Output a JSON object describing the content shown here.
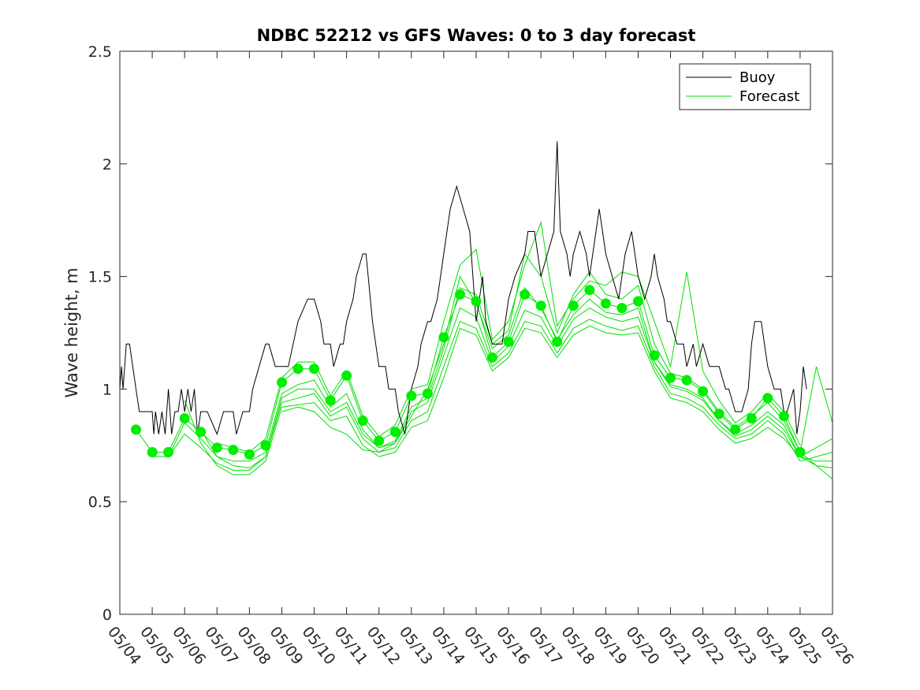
{
  "chart_data": {
    "type": "line",
    "title": "NDBC 52212 vs GFS Waves: 0 to 3 day forecast",
    "xlabel": "",
    "ylabel": "Wave height, m",
    "xlim": [
      0,
      22
    ],
    "ylim": [
      0,
      2.5
    ],
    "x_tick_labels": [
      "05/04",
      "05/05",
      "05/06",
      "05/07",
      "05/08",
      "05/09",
      "05/10",
      "05/11",
      "05/12",
      "05/13",
      "05/14",
      "05/15",
      "05/16",
      "05/17",
      "05/18",
      "05/19",
      "05/20",
      "05/21",
      "05/22",
      "05/23",
      "05/24",
      "05/25",
      "05/26"
    ],
    "y_tick_labels": [
      "0",
      "0.5",
      "1",
      "1.5",
      "2",
      "2.5"
    ],
    "y_ticks": [
      0,
      0.5,
      1,
      1.5,
      2,
      2.5
    ],
    "grid": false,
    "legend": {
      "position": "top-right",
      "entries": [
        "Buoy",
        "Forecast"
      ]
    },
    "colors": {
      "buoy": "#000000",
      "forecast": "#00e000",
      "marker": "#00ee00",
      "axis": "#262626"
    },
    "series": [
      {
        "name": "Buoy",
        "x": [
          0,
          0.05,
          0.1,
          0.2,
          0.3,
          0.5,
          0.6,
          1.0,
          1.05,
          1.1,
          1.2,
          1.3,
          1.4,
          1.5,
          1.6,
          1.7,
          1.8,
          1.9,
          2.0,
          2.1,
          2.2,
          2.3,
          2.4,
          2.5,
          2.7,
          3.0,
          3.2,
          3.5,
          3.6,
          3.8,
          3.9,
          4.0,
          4.1,
          4.3,
          4.5,
          4.6,
          4.8,
          4.9,
          5.0,
          5.2,
          5.5,
          5.8,
          6.0,
          6.2,
          6.3,
          6.5,
          6.6,
          6.8,
          6.9,
          7.0,
          7.2,
          7.3,
          7.5,
          7.6,
          7.8,
          7.9,
          8.0,
          8.2,
          8.3,
          8.5,
          8.6,
          8.8,
          8.9,
          9.0,
          9.2,
          9.3,
          9.5,
          9.6,
          9.8,
          9.9,
          10.0,
          10.2,
          10.4,
          10.6,
          10.8,
          10.9,
          11.0,
          11.1,
          11.2,
          11.3,
          11.5,
          11.6,
          11.8,
          11.9,
          12.0,
          12.2,
          12.5,
          12.6,
          12.8,
          12.9,
          13.0,
          13.2,
          13.4,
          13.5,
          13.6,
          13.8,
          13.9,
          14.0,
          14.2,
          14.4,
          14.5,
          14.6,
          14.7,
          14.8,
          14.9,
          15.0,
          15.2,
          15.4,
          15.5,
          15.6,
          15.8,
          16.0,
          16.2,
          16.4,
          16.5,
          16.6,
          16.8,
          16.9,
          17.0,
          17.2,
          17.4,
          17.5,
          17.7,
          17.8,
          18.0,
          18.2,
          18.4,
          18.5,
          18.7,
          18.8,
          19.0,
          19.2,
          19.4,
          19.5,
          19.6,
          19.8,
          19.9,
          20.0,
          20.2,
          20.4,
          20.5,
          20.6,
          20.8,
          20.9,
          21.0,
          21.1,
          21.2
        ],
        "values": [
          1.0,
          1.1,
          1.0,
          1.2,
          1.2,
          1.0,
          0.9,
          0.9,
          0.8,
          0.9,
          0.8,
          0.9,
          0.8,
          1.0,
          0.8,
          0.9,
          0.9,
          1.0,
          0.9,
          1.0,
          0.9,
          1.0,
          0.8,
          0.9,
          0.9,
          0.8,
          0.9,
          0.9,
          0.8,
          0.9,
          0.9,
          0.9,
          1.0,
          1.1,
          1.2,
          1.2,
          1.1,
          1.1,
          1.1,
          1.1,
          1.3,
          1.4,
          1.4,
          1.3,
          1.2,
          1.2,
          1.1,
          1.2,
          1.2,
          1.3,
          1.4,
          1.5,
          1.6,
          1.6,
          1.3,
          1.2,
          1.1,
          1.1,
          1.0,
          1.0,
          0.9,
          0.8,
          0.9,
          1.0,
          1.1,
          1.2,
          1.3,
          1.3,
          1.4,
          1.5,
          1.6,
          1.8,
          1.9,
          1.8,
          1.7,
          1.5,
          1.3,
          1.4,
          1.5,
          1.3,
          1.2,
          1.2,
          1.2,
          1.3,
          1.4,
          1.5,
          1.6,
          1.7,
          1.7,
          1.6,
          1.5,
          1.6,
          1.7,
          2.1,
          1.7,
          1.6,
          1.5,
          1.6,
          1.7,
          1.6,
          1.5,
          1.6,
          1.7,
          1.8,
          1.7,
          1.6,
          1.5,
          1.4,
          1.5,
          1.6,
          1.7,
          1.5,
          1.4,
          1.5,
          1.6,
          1.5,
          1.4,
          1.3,
          1.3,
          1.2,
          1.2,
          1.1,
          1.2,
          1.1,
          1.2,
          1.1,
          1.1,
          1.1,
          1.0,
          1.0,
          0.9,
          0.9,
          1.0,
          1.2,
          1.3,
          1.3,
          1.2,
          1.1,
          1.0,
          1.0,
          0.9,
          0.9,
          1.0,
          0.8,
          0.9,
          1.1,
          1.0
        ]
      }
    ],
    "forecast_runs": [
      {
        "name": "",
        "x": [
          0.5,
          1,
          1.5,
          2,
          2.5,
          3,
          3.5,
          4,
          4.5,
          5,
          5.5,
          6,
          6.5,
          7,
          7.5,
          8,
          8.5,
          9,
          9.5,
          10,
          10.5,
          11,
          11.5,
          12,
          12.5,
          13,
          13.5,
          14,
          14.5,
          15,
          15.5,
          16,
          16.5,
          17,
          17.5,
          18,
          18.5,
          19,
          19.5,
          20,
          20.5,
          21,
          21.5,
          22
        ],
        "values": [
          0.82,
          0.72,
          0.72,
          0.87,
          0.81,
          0.74,
          0.73,
          0.71,
          0.75,
          1.03,
          1.09,
          1.09,
          0.95,
          1.06,
          0.86,
          0.77,
          0.81,
          0.97,
          0.98,
          1.23,
          1.42,
          1.39,
          1.14,
          1.21,
          1.42,
          1.37,
          1.21,
          1.37,
          1.44,
          1.38,
          1.36,
          1.39,
          1.15,
          1.05,
          1.04,
          0.99,
          0.89,
          0.82,
          0.87,
          0.96,
          0.88,
          0.72,
          0.66,
          0.6
        ]
      },
      {
        "name": "",
        "x": [
          1,
          1.5,
          2,
          2.5,
          3,
          3.5,
          4,
          4.5,
          5,
          5.5,
          6,
          6.5,
          7,
          7.5,
          8,
          8.5,
          9,
          9.5,
          10,
          10.5,
          11,
          11.5,
          12,
          12.5,
          13,
          13.5,
          14,
          14.5,
          15,
          15.5,
          16,
          16.5,
          17,
          17.5,
          18,
          18.5,
          19,
          19.5,
          20,
          20.5,
          21,
          21.5,
          22
        ],
        "values": [
          0.7,
          0.7,
          0.85,
          0.78,
          0.7,
          0.68,
          0.68,
          0.72,
          0.98,
          1.02,
          1.04,
          0.92,
          0.98,
          0.82,
          0.74,
          0.76,
          0.9,
          0.94,
          1.15,
          1.36,
          1.32,
          1.12,
          1.19,
          1.35,
          1.32,
          1.19,
          1.31,
          1.36,
          1.32,
          1.3,
          1.32,
          1.12,
          1.01,
          0.99,
          0.95,
          0.86,
          0.8,
          0.84,
          0.9,
          0.84,
          0.7,
          0.66,
          0.65
        ]
      },
      {
        "name": "",
        "x": [
          1.5,
          2,
          2.5,
          3,
          3.5,
          4,
          4.5,
          5,
          5.5,
          6,
          6.5,
          7,
          7.5,
          8,
          8.5,
          9,
          9.5,
          10,
          10.5,
          11,
          11.5,
          12,
          12.5,
          13,
          13.5,
          14,
          14.5,
          15,
          15.5,
          16,
          16.5,
          17,
          17.5,
          18,
          18.5,
          19,
          19.5,
          20,
          20.5,
          21,
          21.5,
          22
        ],
        "values": [
          0.7,
          0.8,
          0.74,
          0.67,
          0.64,
          0.64,
          0.7,
          0.94,
          0.96,
          0.98,
          0.88,
          0.92,
          0.78,
          0.72,
          0.74,
          0.86,
          0.9,
          1.1,
          1.3,
          1.27,
          1.1,
          1.16,
          1.3,
          1.28,
          1.16,
          1.27,
          1.31,
          1.28,
          1.26,
          1.28,
          1.1,
          0.98,
          0.96,
          0.92,
          0.84,
          0.78,
          0.8,
          0.86,
          0.8,
          0.68,
          0.7,
          0.72
        ]
      },
      {
        "name": "",
        "x": [
          2,
          2.5,
          3,
          3.5,
          4,
          4.5,
          5,
          5.5,
          6,
          6.5,
          7,
          7.5,
          8,
          8.5,
          9,
          9.5,
          10,
          10.5,
          11,
          11.5,
          12,
          12.5,
          13,
          13.5,
          14,
          14.5,
          15,
          15.5,
          16,
          16.5,
          17,
          17.5,
          18,
          18.5,
          19,
          19.5,
          20,
          20.5,
          21,
          21.5,
          22
        ],
        "values": [
          0.95,
          0.76,
          0.66,
          0.62,
          0.62,
          0.68,
          0.92,
          0.93,
          0.94,
          0.86,
          0.88,
          0.75,
          0.7,
          0.72,
          0.83,
          0.86,
          1.05,
          1.27,
          1.24,
          1.08,
          1.14,
          1.27,
          1.25,
          1.14,
          1.24,
          1.28,
          1.25,
          1.24,
          1.25,
          1.08,
          0.96,
          0.94,
          0.9,
          0.82,
          0.76,
          0.78,
          0.83,
          0.78,
          0.7,
          0.74,
          0.78
        ]
      },
      {
        "name": "",
        "x": [
          2.5,
          3,
          3.5,
          4,
          4.5,
          5,
          5.5,
          6,
          6.5,
          7,
          7.5,
          8,
          8.5,
          9,
          9.5,
          10,
          10.5,
          11,
          11.5,
          12,
          12.5,
          13,
          13.5,
          14,
          14.5,
          15,
          15.5,
          16,
          16.5,
          17,
          17.5,
          18,
          18.5,
          19,
          19.5,
          20,
          20.5,
          21,
          21.5,
          22
        ],
        "values": [
          0.82,
          0.7,
          0.66,
          0.65,
          0.7,
          0.96,
          1.0,
          1.0,
          0.9,
          0.94,
          0.8,
          0.74,
          0.77,
          0.92,
          0.96,
          1.18,
          1.45,
          1.42,
          1.2,
          1.26,
          1.6,
          1.5,
          1.25,
          1.42,
          1.52,
          1.42,
          1.4,
          1.46,
          1.2,
          1.07,
          1.05,
          1.0,
          0.9,
          0.83,
          0.88,
          0.94,
          0.86,
          0.72,
          1.1,
          0.85
        ]
      },
      {
        "name": "",
        "x": [
          3,
          3.5,
          4,
          4.5,
          5,
          5.5,
          6,
          6.5,
          7,
          7.5,
          8,
          8.5,
          9,
          9.5,
          10,
          10.5,
          11,
          11.5,
          12,
          12.5,
          13,
          13.5,
          14,
          14.5,
          15,
          15.5,
          16,
          16.5,
          17,
          17.5,
          18,
          18.5,
          19,
          19.5,
          20,
          20.5,
          21
        ],
        "values": [
          0.76,
          0.74,
          0.72,
          0.78,
          1.05,
          1.12,
          1.12,
          0.97,
          1.08,
          0.88,
          0.79,
          0.84,
          1.0,
          1.02,
          1.3,
          1.55,
          1.62,
          1.22,
          1.3,
          1.55,
          1.74,
          1.28,
          1.4,
          1.48,
          1.46,
          1.52,
          1.5,
          1.3,
          1.1,
          1.52,
          1.08,
          0.95,
          0.85,
          0.9,
          0.98,
          0.9,
          0.75
        ]
      },
      {
        "name": "",
        "x": [
          5,
          5.5,
          6,
          6.5,
          7,
          7.5,
          8,
          8.5,
          9,
          9.5,
          10,
          10.5,
          11,
          11.5,
          12,
          12.5,
          13,
          13.5,
          14,
          14.5,
          15,
          15.5,
          16,
          16.5,
          17,
          17.5,
          18,
          18.5,
          19,
          19.5,
          20,
          20.5,
          21,
          21.5,
          22
        ],
        "values": [
          0.9,
          0.92,
          0.9,
          0.83,
          0.8,
          0.73,
          0.72,
          0.76,
          0.88,
          1.0,
          1.2,
          1.5,
          1.38,
          1.18,
          1.24,
          1.45,
          1.36,
          1.22,
          1.33,
          1.4,
          1.34,
          1.33,
          1.36,
          1.12,
          1.02,
          1.0,
          0.96,
          0.86,
          0.79,
          0.82,
          0.88,
          0.82,
          0.7,
          0.68,
          0.68
        ]
      }
    ],
    "markers": {
      "x": [
        0.5,
        1,
        1.5,
        2,
        2.5,
        3,
        3.5,
        4,
        4.5,
        5,
        5.5,
        6,
        6.5,
        7,
        7.5,
        8,
        8.5,
        9,
        9.5,
        10,
        10.5,
        11,
        11.5,
        12,
        12.5,
        13,
        13.5,
        14,
        14.5,
        15,
        15.5,
        16,
        16.5,
        17,
        17.5,
        18,
        18.5,
        19,
        19.5,
        20,
        20.5,
        21
      ],
      "values": [
        0.82,
        0.72,
        0.72,
        0.87,
        0.81,
        0.74,
        0.73,
        0.71,
        0.75,
        1.03,
        1.09,
        1.09,
        0.95,
        1.06,
        0.86,
        0.77,
        0.81,
        0.97,
        0.98,
        1.23,
        1.42,
        1.39,
        1.14,
        1.21,
        1.42,
        1.37,
        1.21,
        1.37,
        1.44,
        1.38,
        1.36,
        1.39,
        1.15,
        1.05,
        1.04,
        0.99,
        0.89,
        0.82,
        0.87,
        0.96,
        0.88,
        0.72
      ]
    }
  }
}
